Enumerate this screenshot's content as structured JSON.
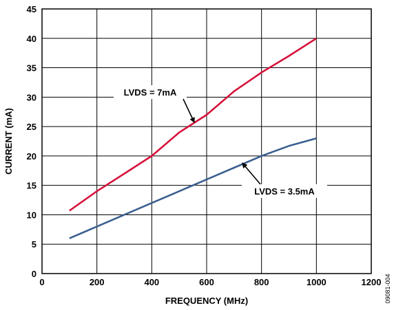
{
  "chart_data": {
    "type": "line",
    "xlabel": "FREQUENCY (MHz)",
    "ylabel": "CURRENT (mA)",
    "xlim": [
      0,
      1200
    ],
    "ylim": [
      0,
      45
    ],
    "xticks": [
      0,
      200,
      400,
      600,
      800,
      1000,
      1200
    ],
    "yticks": [
      0,
      5,
      10,
      15,
      20,
      25,
      30,
      35,
      40,
      45
    ],
    "grid": true,
    "series": [
      {
        "color": "#d6113a",
        "x": [
          100,
          200,
          300,
          400,
          500,
          600,
          700,
          800,
          900,
          1000
        ],
        "y": [
          10.7,
          14,
          17,
          20,
          24,
          27,
          31,
          34.2,
          37,
          40
        ]
      },
      {
        "color": "#3b5f8f",
        "x": [
          100,
          200,
          300,
          400,
          500,
          600,
          700,
          800,
          900,
          1000
        ],
        "y": [
          6,
          8,
          10,
          12,
          14,
          16,
          18,
          20,
          21.7,
          23
        ]
      }
    ],
    "annotations": [
      {
        "text": "LVDS = 7mA",
        "target": [
          555,
          25.7
        ]
      },
      {
        "text": "LVDS = 3.5mA",
        "target": [
          730,
          18.8
        ]
      }
    ],
    "figure_id": "09081-004"
  }
}
